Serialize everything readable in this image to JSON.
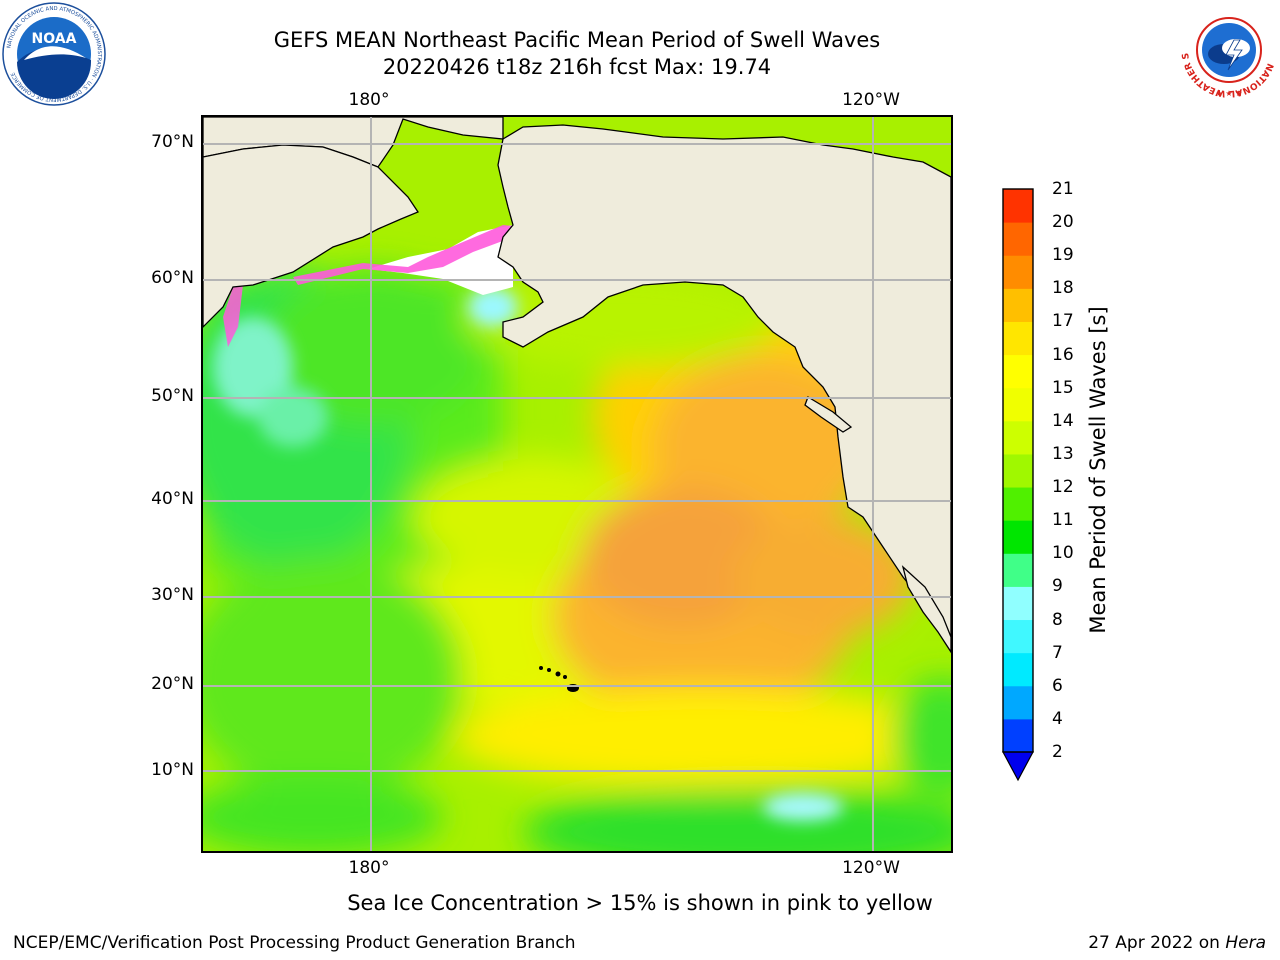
{
  "header": {
    "title": "GEFS MEAN Northeast Pacific Mean Period of Swell Waves",
    "subtitle": "20220426 t18z 216h fcst   Max: 19.74"
  },
  "map": {
    "lat_labels": [
      "70°N",
      "60°N",
      "50°N",
      "40°N",
      "30°N",
      "20°N",
      "10°N"
    ],
    "lon_labels_top": [
      "180°",
      "120°W"
    ],
    "lon_labels_bottom": [
      "180°",
      "120°W"
    ],
    "land_color": "#efecdc",
    "grid_color": "#b4b4b4"
  },
  "colorbar": {
    "title": "Mean Period of Swell Waves [s]",
    "levels": [
      "2",
      "4",
      "6",
      "7",
      "8",
      "9",
      "10",
      "11",
      "12",
      "13",
      "14",
      "15",
      "16",
      "17",
      "18",
      "19",
      "20",
      "21"
    ],
    "colors": [
      "#0040ff",
      "#00a8ff",
      "#00eaff",
      "#40f8ff",
      "#90ffff",
      "#40ff88",
      "#00e600",
      "#50f000",
      "#a0f800",
      "#cdff00",
      "#f0ff00",
      "#ffff00",
      "#ffe600",
      "#ffbf00",
      "#ff8c00",
      "#ff6600",
      "#ff3300",
      "#ff0000"
    ],
    "extend_min_color": "#0000ee"
  },
  "footer": {
    "note": "Sea Ice Concentration > 15% is shown in pink to yellow",
    "credit": "NCEP/EMC/Verification Post Processing Product Generation Branch",
    "date": "27 Apr 2022 on ",
    "system": "Hera"
  },
  "logos": {
    "noaa_text": "NOAA",
    "noaa_ring_text": "NATIONAL OCEANIC AND ATMOSPHERIC ADMINISTRATION · U.S. DEPARTMENT OF COMMERCE",
    "nws_ring_text": "NATIONAL WEATHER SERVICE"
  }
}
